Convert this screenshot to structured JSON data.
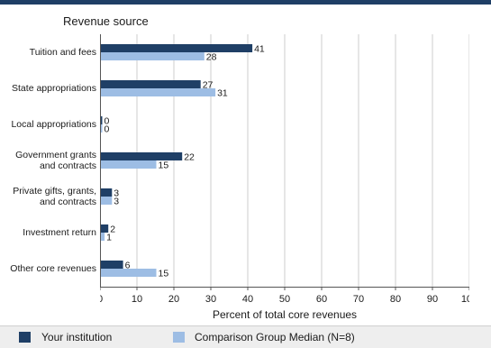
{
  "chart_data": {
    "type": "bar",
    "orientation": "horizontal",
    "title": "Revenue source",
    "xlabel": "Percent of total core revenues",
    "xlim": [
      0,
      100
    ],
    "xticks": [
      0,
      10,
      20,
      30,
      40,
      50,
      60,
      70,
      80,
      90,
      100
    ],
    "grid": true,
    "legend_position": "bottom",
    "categories": [
      "Tuition and fees",
      "State appropriations",
      "Local appropriations",
      "Government grants and contracts",
      "Private gifts, grants, and contracts",
      "Investment return",
      "Other core revenues"
    ],
    "series": [
      {
        "name": "Your institution",
        "color": "#1f3f66",
        "values": [
          41,
          27,
          0,
          22,
          3,
          2,
          6
        ]
      },
      {
        "name": "Comparison Group Median (N=8)",
        "color": "#9dbde4",
        "values": [
          28,
          31,
          0,
          15,
          3,
          1,
          15
        ]
      }
    ]
  }
}
